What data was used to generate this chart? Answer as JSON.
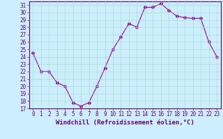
{
  "x": [
    0,
    1,
    2,
    3,
    4,
    5,
    6,
    7,
    8,
    9,
    10,
    11,
    12,
    13,
    14,
    15,
    16,
    17,
    18,
    19,
    20,
    21,
    22,
    23
  ],
  "y": [
    24.5,
    22.0,
    22.0,
    20.5,
    20.0,
    17.8,
    17.3,
    17.8,
    20.0,
    22.5,
    25.0,
    26.7,
    28.5,
    28.0,
    30.7,
    30.7,
    31.2,
    30.3,
    29.5,
    29.3,
    29.2,
    29.2,
    26.0,
    24.0
  ],
  "line_color": "#990099",
  "marker": "D",
  "marker_size": 2,
  "bg_color": "#cceeff",
  "grid_color": "#aaddcc",
  "xlabel": "Windchill (Refroidissement éolien,°C)",
  "ylabel": "",
  "title": "",
  "xlim": [
    -0.5,
    23.5
  ],
  "ylim": [
    17,
    31.5
  ],
  "yticks": [
    17,
    18,
    19,
    20,
    21,
    22,
    23,
    24,
    25,
    26,
    27,
    28,
    29,
    30,
    31
  ],
  "xticks": [
    0,
    1,
    2,
    3,
    4,
    5,
    6,
    7,
    8,
    9,
    10,
    11,
    12,
    13,
    14,
    15,
    16,
    17,
    18,
    19,
    20,
    21,
    22,
    23
  ],
  "tick_fontsize": 5.5,
  "label_fontsize": 6.5,
  "spine_color": "#660066",
  "tick_color": "#660066",
  "label_color": "#660066"
}
